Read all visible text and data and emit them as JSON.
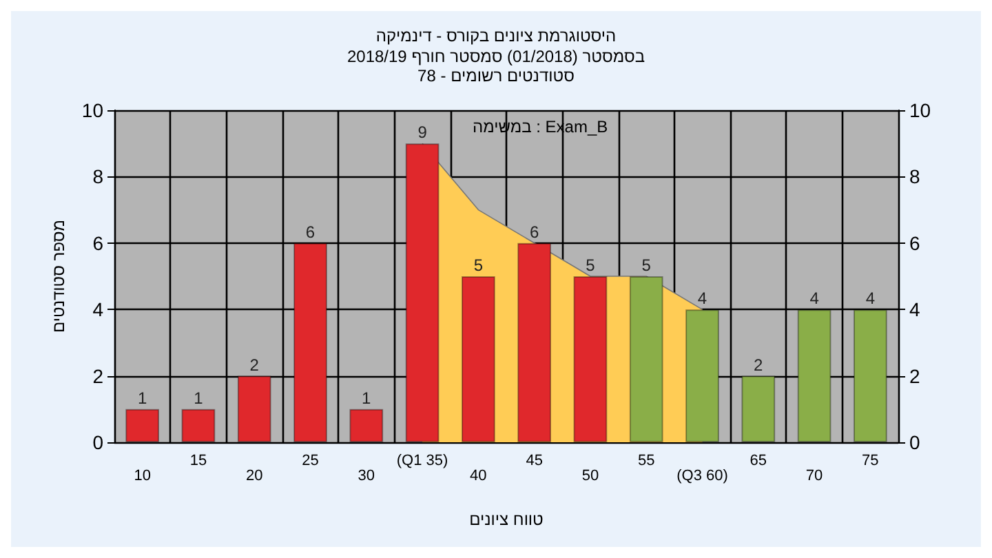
{
  "chart_data": {
    "type": "bar",
    "title": "היסטוגרמת ציונים בקורס - דינמיקה",
    "subtitle": "בסמסטר (01/2018) סמסטר חורף 2018/19\nסטודנטים רשומים - 78",
    "xlabel": "טווח ציונים",
    "ylabel": "מספר סטודנטים",
    "annotations": [
      "במשימה : Exam_B"
    ],
    "categories": [
      "10",
      "15",
      "20",
      "25",
      "30",
      "(Q1 35)",
      "40",
      "45",
      "50",
      "55",
      "(Q3 60)",
      "65",
      "70",
      "75"
    ],
    "series": [
      {
        "type": "area",
        "color": "#ffcc55",
        "values": [
          null,
          null,
          null,
          null,
          null,
          9,
          7,
          6,
          5,
          5,
          4,
          null,
          null,
          null
        ]
      },
      {
        "values": [
          1,
          1,
          2,
          6,
          1,
          9,
          5,
          6,
          5,
          5,
          4,
          2,
          4,
          4
        ],
        "value_labels": [
          "1",
          "1",
          "2",
          "6",
          "1",
          "9",
          "5",
          "6",
          "5",
          "5",
          "4",
          "2",
          "4",
          "4"
        ],
        "colors": [
          "#e0282c",
          "#e0282c",
          "#e0282c",
          "#e0282c",
          "#e0282c",
          "#e0282c",
          "#e0282c",
          "#e0282c",
          "#e0282c",
          "#8aae48",
          "#8aae48",
          "#8aae48",
          "#8aae48",
          "#8aae48"
        ]
      }
    ],
    "ylim": [
      0,
      10
    ],
    "yticks": [
      0,
      2,
      4,
      6,
      8,
      10
    ],
    "y2lim": [
      0,
      10
    ],
    "y2ticks": [
      0,
      2,
      4,
      6,
      8,
      10
    ],
    "grid": true
  }
}
